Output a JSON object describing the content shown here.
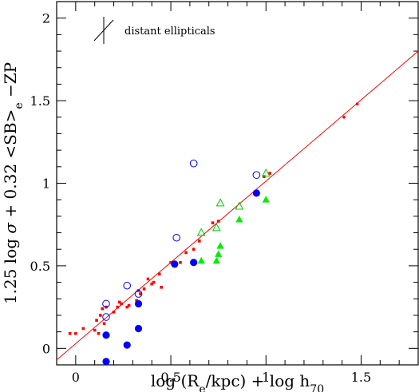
{
  "chart_data": {
    "type": "scatter",
    "xlabel": {
      "parts": [
        {
          "t": "log (R"
        },
        {
          "t": "e",
          "sub": true
        },
        {
          "t": "/kpc)  +  log h"
        },
        {
          "t": "70",
          "sub": true
        }
      ]
    },
    "ylabel": {
      "parts": [
        {
          "t": "1.25 log "
        },
        {
          "t": "σ",
          "italic": true
        },
        {
          "t": " + 0.32 <SB>"
        },
        {
          "t": "e",
          "sub": true
        },
        {
          "t": " −ZP"
        }
      ]
    },
    "xlim": [
      -0.1,
      1.8
    ],
    "ylim": [
      -0.1,
      2.1
    ],
    "x_ticks": [
      0,
      0.5,
      1,
      1.5
    ],
    "x_tick_labels": [
      "0",
      "0.5",
      "1",
      "1.5"
    ],
    "y_ticks": [
      0,
      0.5,
      1,
      1.5,
      2
    ],
    "y_tick_labels": [
      "0",
      "0.5",
      "1",
      "1.5",
      "2"
    ],
    "grid": false,
    "annotations": [
      {
        "text": "distant ellipticals",
        "symbol": "error-cross"
      }
    ],
    "fit_line": {
      "name": "",
      "color": "#ff0000",
      "points": [
        [
          -0.1,
          -0.07
        ],
        [
          1.8,
          1.8
        ]
      ]
    },
    "series": [
      {
        "marker": "square-small",
        "color": "#ff0000",
        "points": [
          [
            -0.03,
            0.09
          ],
          [
            0.0,
            0.09
          ],
          [
            0.04,
            0.12
          ],
          [
            0.1,
            0.11
          ],
          [
            0.11,
            0.17
          ],
          [
            0.12,
            0.09
          ],
          [
            0.13,
            0.2
          ],
          [
            0.14,
            0.24
          ],
          [
            0.15,
            0.15
          ],
          [
            0.16,
            0.25
          ],
          [
            0.2,
            0.22
          ],
          [
            0.22,
            0.25
          ],
          [
            0.23,
            0.28
          ],
          [
            0.24,
            0.27
          ],
          [
            0.27,
            0.25
          ],
          [
            0.28,
            0.26
          ],
          [
            0.32,
            0.29
          ],
          [
            0.33,
            0.35
          ],
          [
            0.34,
            0.33
          ],
          [
            0.36,
            0.36
          ],
          [
            0.38,
            0.42
          ],
          [
            0.4,
            0.39
          ],
          [
            0.41,
            0.4
          ],
          [
            0.44,
            0.45
          ],
          [
            0.45,
            0.37
          ],
          [
            0.5,
            0.52
          ],
          [
            0.52,
            0.5
          ],
          [
            0.55,
            0.52
          ],
          [
            0.58,
            0.58
          ],
          [
            0.62,
            0.6
          ],
          [
            0.65,
            0.65
          ],
          [
            0.72,
            0.76
          ],
          [
            0.75,
            0.77
          ],
          [
            0.99,
            1.04
          ],
          [
            1.02,
            1.06
          ]
        ]
      },
      {
        "marker": "dot-small",
        "color": "#ff0000",
        "points": [
          [
            1.41,
            1.4
          ],
          [
            1.48,
            1.48
          ]
        ]
      },
      {
        "marker": "circle-open",
        "color": "#0000ff",
        "points": [
          [
            0.16,
            0.27
          ],
          [
            0.16,
            0.19
          ],
          [
            0.27,
            0.38
          ],
          [
            0.33,
            0.33
          ],
          [
            0.53,
            0.67
          ],
          [
            0.62,
            1.12
          ],
          [
            0.95,
            1.05
          ]
        ]
      },
      {
        "marker": "circle-filled",
        "color": "#0000ff",
        "points": [
          [
            0.16,
            0.08
          ],
          [
            0.16,
            -0.08
          ],
          [
            0.27,
            0.02
          ],
          [
            0.33,
            0.27
          ],
          [
            0.33,
            0.12
          ],
          [
            0.52,
            0.51
          ],
          [
            0.62,
            0.52
          ],
          [
            0.95,
            0.94
          ]
        ]
      },
      {
        "marker": "triangle-open",
        "color": "#00cc00",
        "points": [
          [
            0.66,
            0.7
          ],
          [
            0.74,
            0.73
          ],
          [
            0.76,
            0.88
          ],
          [
            0.86,
            0.86
          ],
          [
            1.0,
            1.06
          ]
        ]
      },
      {
        "marker": "triangle-filled",
        "color": "#00ee00",
        "points": [
          [
            0.66,
            0.53
          ],
          [
            0.74,
            0.53
          ],
          [
            0.75,
            0.57
          ],
          [
            0.76,
            0.62
          ],
          [
            0.86,
            0.78
          ],
          [
            1.0,
            0.9
          ]
        ]
      }
    ]
  }
}
